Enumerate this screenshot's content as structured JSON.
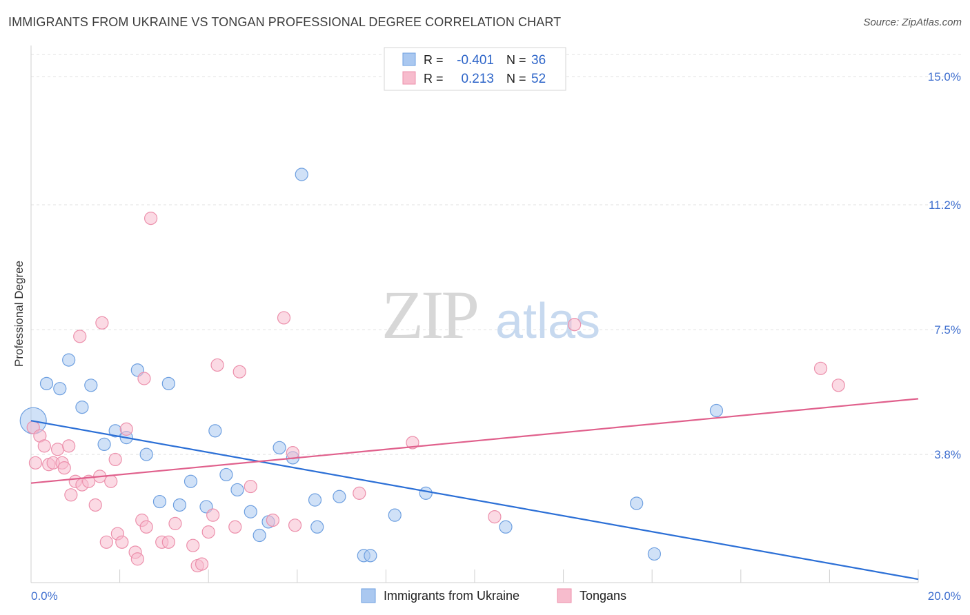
{
  "header": {
    "title": "IMMIGRANTS FROM UKRAINE VS TONGAN PROFESSIONAL DEGREE CORRELATION CHART",
    "source": "Source: ZipAtlas.com"
  },
  "watermark": {
    "zip": "ZIP",
    "atlas": "atlas"
  },
  "legend": {
    "rows": [
      {
        "r_label": "R =",
        "r_value": "-0.401",
        "n_label": "N =",
        "n_value": "36"
      },
      {
        "r_label": "R =",
        "r_value": "0.213",
        "n_label": "N =",
        "n_value": "52"
      }
    ]
  },
  "chart_data": {
    "type": "scatter",
    "title": "IMMIGRANTS FROM UKRAINE VS TONGAN PROFESSIONAL DEGREE CORRELATION CHART",
    "xlabel": "",
    "ylabel": "Professional Degree",
    "xlim": [
      0,
      20
    ],
    "ylim": [
      0,
      15.8
    ],
    "x_tick_labels": [
      "0.0%",
      "20.0%"
    ],
    "y_ticks": [
      3.8,
      7.5,
      11.2,
      15.0
    ],
    "y_tick_labels": [
      "3.8%",
      "7.5%",
      "11.2%",
      "15.0%"
    ],
    "grid": true,
    "legend_position": "top-center",
    "colors": {
      "ukraine_fill": "#aac8f0",
      "ukraine_stroke": "#6d9fe0",
      "ukraine_line": "#2b6fd6",
      "tongan_fill": "#f7bccd",
      "tongan_stroke": "#ec8fab",
      "tongan_line": "#e0608c"
    },
    "series": [
      {
        "name": "Immigrants from Ukraine",
        "r": -0.401,
        "n": 36,
        "trend": {
          "x": [
            0,
            20
          ],
          "y": [
            4.8,
            0.1
          ]
        },
        "points": [
          {
            "x": 0.05,
            "y": 4.8,
            "big": true
          },
          {
            "x": 0.35,
            "y": 5.9
          },
          {
            "x": 0.65,
            "y": 5.75
          },
          {
            "x": 0.85,
            "y": 6.6
          },
          {
            "x": 1.15,
            "y": 5.2
          },
          {
            "x": 1.35,
            "y": 5.85
          },
          {
            "x": 1.65,
            "y": 4.1
          },
          {
            "x": 1.9,
            "y": 4.5
          },
          {
            "x": 2.15,
            "y": 4.3
          },
          {
            "x": 2.4,
            "y": 6.3
          },
          {
            "x": 2.6,
            "y": 3.8
          },
          {
            "x": 2.9,
            "y": 2.4
          },
          {
            "x": 3.1,
            "y": 5.9
          },
          {
            "x": 3.35,
            "y": 2.3
          },
          {
            "x": 3.6,
            "y": 3.0
          },
          {
            "x": 3.95,
            "y": 2.25
          },
          {
            "x": 4.15,
            "y": 4.5
          },
          {
            "x": 4.4,
            "y": 3.2
          },
          {
            "x": 4.65,
            "y": 2.75
          },
          {
            "x": 4.95,
            "y": 2.1
          },
          {
            "x": 5.15,
            "y": 1.4
          },
          {
            "x": 5.35,
            "y": 1.8
          },
          {
            "x": 5.6,
            "y": 4.0
          },
          {
            "x": 5.9,
            "y": 3.7
          },
          {
            "x": 6.1,
            "y": 12.1
          },
          {
            "x": 6.4,
            "y": 2.45
          },
          {
            "x": 6.45,
            "y": 1.65
          },
          {
            "x": 6.95,
            "y": 2.55
          },
          {
            "x": 7.5,
            "y": 0.8
          },
          {
            "x": 7.65,
            "y": 0.8
          },
          {
            "x": 8.2,
            "y": 2.0
          },
          {
            "x": 8.9,
            "y": 2.65
          },
          {
            "x": 10.7,
            "y": 1.65
          },
          {
            "x": 13.65,
            "y": 2.35
          },
          {
            "x": 14.05,
            "y": 0.85
          },
          {
            "x": 15.45,
            "y": 5.1
          }
        ]
      },
      {
        "name": "Tongans",
        "r": 0.213,
        "n": 52,
        "trend": {
          "x": [
            0,
            20
          ],
          "y": [
            2.95,
            5.45
          ]
        },
        "points": [
          {
            "x": 0.05,
            "y": 4.6
          },
          {
            "x": 0.1,
            "y": 3.55
          },
          {
            "x": 0.2,
            "y": 4.35
          },
          {
            "x": 0.3,
            "y": 4.05
          },
          {
            "x": 0.4,
            "y": 3.5
          },
          {
            "x": 0.5,
            "y": 3.55
          },
          {
            "x": 0.6,
            "y": 3.95
          },
          {
            "x": 0.7,
            "y": 3.55
          },
          {
            "x": 0.75,
            "y": 3.4
          },
          {
            "x": 0.85,
            "y": 4.05
          },
          {
            "x": 0.9,
            "y": 2.6
          },
          {
            "x": 1.0,
            "y": 3.0
          },
          {
            "x": 1.1,
            "y": 7.3
          },
          {
            "x": 1.15,
            "y": 2.9
          },
          {
            "x": 1.3,
            "y": 3.0
          },
          {
            "x": 1.45,
            "y": 2.3
          },
          {
            "x": 1.55,
            "y": 3.15
          },
          {
            "x": 1.6,
            "y": 7.7
          },
          {
            "x": 1.7,
            "y": 1.2
          },
          {
            "x": 1.8,
            "y": 3.0
          },
          {
            "x": 1.9,
            "y": 3.65
          },
          {
            "x": 1.95,
            "y": 1.45
          },
          {
            "x": 2.05,
            "y": 1.2
          },
          {
            "x": 2.15,
            "y": 4.55
          },
          {
            "x": 2.35,
            "y": 0.9
          },
          {
            "x": 2.4,
            "y": 0.7
          },
          {
            "x": 2.5,
            "y": 1.85
          },
          {
            "x": 2.55,
            "y": 6.05
          },
          {
            "x": 2.6,
            "y": 1.65
          },
          {
            "x": 2.7,
            "y": 10.8
          },
          {
            "x": 2.95,
            "y": 1.2
          },
          {
            "x": 3.1,
            "y": 1.2
          },
          {
            "x": 3.25,
            "y": 1.75
          },
          {
            "x": 3.65,
            "y": 1.1
          },
          {
            "x": 3.75,
            "y": 0.5
          },
          {
            "x": 3.85,
            "y": 0.55
          },
          {
            "x": 4.0,
            "y": 1.5
          },
          {
            "x": 4.1,
            "y": 2.0
          },
          {
            "x": 4.2,
            "y": 6.45
          },
          {
            "x": 4.6,
            "y": 1.65
          },
          {
            "x": 4.7,
            "y": 6.25
          },
          {
            "x": 4.95,
            "y": 2.85
          },
          {
            "x": 5.45,
            "y": 1.85
          },
          {
            "x": 5.7,
            "y": 7.85
          },
          {
            "x": 5.9,
            "y": 3.85
          },
          {
            "x": 5.95,
            "y": 1.7
          },
          {
            "x": 7.4,
            "y": 2.65
          },
          {
            "x": 8.6,
            "y": 4.15
          },
          {
            "x": 10.45,
            "y": 1.95
          },
          {
            "x": 12.25,
            "y": 7.65
          },
          {
            "x": 17.8,
            "y": 6.35
          },
          {
            "x": 18.2,
            "y": 5.85
          }
        ]
      }
    ]
  }
}
